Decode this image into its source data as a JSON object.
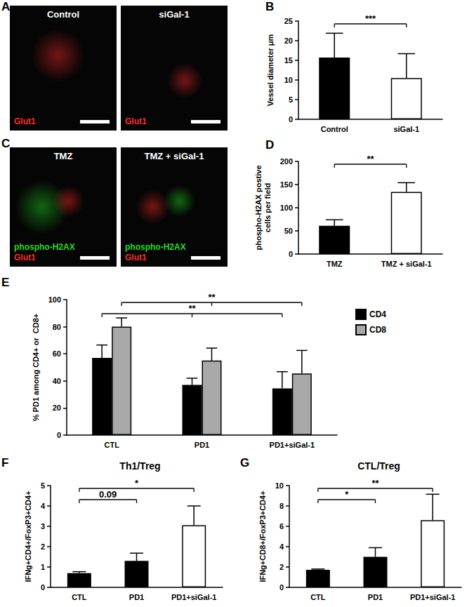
{
  "images": [
    {
      "letter": "A",
      "tiles": [
        {
          "label": "Control",
          "stains": [
            {
              "text": "Glut1",
              "color": "#ff2a2a"
            }
          ]
        },
        {
          "label": "siGal-1",
          "stains": [
            {
              "text": "Glut1",
              "color": "#ff2a2a"
            }
          ]
        }
      ]
    },
    {
      "letter": "C",
      "tiles": [
        {
          "label": "TMZ",
          "stains": [
            {
              "text": "phospho-H2AX",
              "color": "#22dd22"
            },
            {
              "text": "Glut1",
              "color": "#ff2a2a"
            }
          ]
        },
        {
          "label": "TMZ + siGal-1",
          "stains": [
            {
              "text": "phospho-H2AX",
              "color": "#22dd22"
            },
            {
              "text": "Glut1",
              "color": "#ff2a2a"
            }
          ]
        }
      ]
    }
  ],
  "chart_data": [
    {
      "letter": "B",
      "type": "bar",
      "ylabel": "Vessel diameter μm",
      "categories": [
        "Control",
        "siGal-1"
      ],
      "values": [
        15.7,
        10.5
      ],
      "errors": [
        6.2,
        6.2
      ],
      "colors": [
        "#000000",
        "#ffffff"
      ],
      "ylim": [
        0,
        25
      ],
      "yticks": [
        0,
        5,
        10,
        15,
        20,
        25
      ],
      "grid": false,
      "annotations": [
        {
          "text": "***",
          "between": [
            "Control",
            "siGal-1"
          ]
        }
      ]
    },
    {
      "letter": "D",
      "type": "bar",
      "ylabel": "phospho-H2AX postive\ncells per field",
      "categories": [
        "TMZ",
        "TMZ + siGal-1"
      ],
      "values": [
        61,
        134
      ],
      "errors": [
        13,
        20
      ],
      "colors": [
        "#000000",
        "#ffffff"
      ],
      "ylim": [
        0,
        200
      ],
      "yticks": [
        0,
        50,
        100,
        150,
        200
      ],
      "grid": false,
      "annotations": [
        {
          "text": "**",
          "between": [
            "TMZ",
            "TMZ + siGal-1"
          ]
        }
      ]
    },
    {
      "letter": "E",
      "type": "bar",
      "ylabel": "% PD1 among CD4+ or  CD8+",
      "categories": [
        "CTL",
        "PD1",
        "PD1+siGal-1"
      ],
      "series": [
        {
          "name": "CD4",
          "color": "#000000",
          "values": [
            57,
            37,
            34.5
          ],
          "errors": [
            9.5,
            5,
            12.3
          ]
        },
        {
          "name": "CD8",
          "color": "#a9a9a9",
          "values": [
            80,
            55,
            45.5
          ],
          "errors": [
            6.5,
            9.2,
            17
          ]
        }
      ],
      "ylim": [
        0,
        100
      ],
      "yticks": [
        0,
        20,
        40,
        60,
        80,
        100
      ],
      "grid": false,
      "legend": "upper right",
      "annotations": [
        {
          "text": "**",
          "between": [
            "CTL",
            "PD1",
            "PD1+siGal-1"
          ],
          "series": "CD8"
        },
        {
          "text": "**",
          "between": [
            "CTL",
            "PD1",
            "PD1+siGal-1"
          ],
          "series": "CD4"
        }
      ]
    },
    {
      "letter": "F",
      "type": "bar",
      "title": "Th1/Treg",
      "ylabel": "IFNg+CD4+/FoxP3+CD4+",
      "categories": [
        "CTL",
        "PD1",
        "PD1+siGal-1"
      ],
      "values": [
        0.7,
        1.3,
        3.05
      ],
      "errors": [
        0.07,
        0.38,
        0.95
      ],
      "colors": [
        "#000000",
        "#000000",
        "#ffffff"
      ],
      "ylim": [
        0,
        5
      ],
      "yticks": [
        0,
        1,
        2,
        3,
        4,
        5
      ],
      "grid": false,
      "annotations": [
        {
          "text": "*",
          "between": [
            "CTL",
            "PD1+siGal-1"
          ]
        },
        {
          "text": "0.09",
          "between": [
            "CTL",
            "PD1"
          ]
        }
      ]
    },
    {
      "letter": "G",
      "type": "bar",
      "title": "CTL/Treg",
      "ylabel": "IFNg+CD8+/FoxP3+CD4+",
      "categories": [
        "CTL",
        "PD1",
        "PD1+siGal-1"
      ],
      "values": [
        1.72,
        3.0,
        6.6
      ],
      "errors": [
        0.08,
        0.9,
        2.55
      ],
      "colors": [
        "#000000",
        "#000000",
        "#ffffff"
      ],
      "ylim": [
        0,
        10
      ],
      "yticks": [
        0,
        2,
        4,
        6,
        8,
        10
      ],
      "grid": false,
      "annotations": [
        {
          "text": "**",
          "between": [
            "CTL",
            "PD1+siGal-1"
          ]
        },
        {
          "text": "*",
          "between": [
            "CTL",
            "PD1"
          ]
        }
      ]
    }
  ]
}
